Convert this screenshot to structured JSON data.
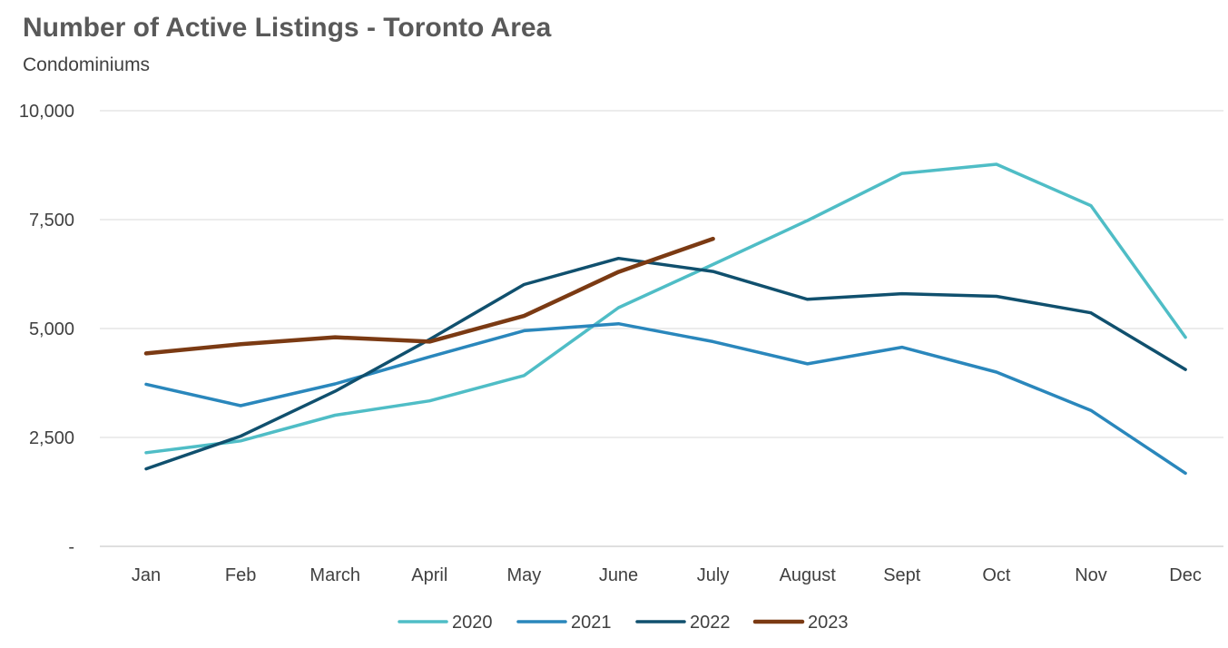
{
  "chart_data": {
    "type": "line",
    "title": "Number of Active Listings - Toronto Area",
    "subtitle": "Condominiums",
    "xlabel": "",
    "ylabel": "",
    "categories": [
      "Jan",
      "Feb",
      "March",
      "April",
      "May",
      "June",
      "July",
      "August",
      "Sept",
      "Oct",
      "Nov",
      "Dec"
    ],
    "ylim": [
      0,
      10000
    ],
    "yticks": [
      0,
      2500,
      5000,
      7500,
      10000
    ],
    "ytick_labels": [
      "-",
      "2,500",
      "5,000",
      "7,500",
      "10,000"
    ],
    "grid": true,
    "legend": "bottom",
    "series": [
      {
        "name": "2020",
        "color": "#4FBDC6",
        "values": [
          2150,
          2420,
          3010,
          3340,
          3920,
          5480,
          6470,
          7480,
          8560,
          8770,
          7820,
          4800
        ]
      },
      {
        "name": "2021",
        "color": "#2A87BC",
        "values": [
          3720,
          3230,
          3730,
          4350,
          4950,
          5110,
          4700,
          4190,
          4570,
          4000,
          3120,
          1680
        ]
      },
      {
        "name": "2022",
        "color": "#10506E",
        "values": [
          1780,
          2530,
          3560,
          4750,
          6010,
          6610,
          6310,
          5670,
          5800,
          5740,
          5360,
          4060
        ]
      },
      {
        "name": "2023",
        "color": "#7B3A13",
        "values": [
          4430,
          4640,
          4800,
          4700,
          5290,
          6300,
          7060,
          null,
          null,
          null,
          null,
          null
        ]
      }
    ]
  }
}
